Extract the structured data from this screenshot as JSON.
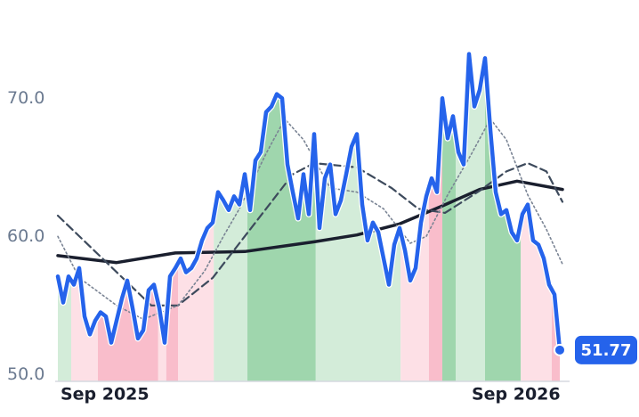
{
  "chart_data": {
    "type": "line",
    "x": [
      0,
      1,
      2,
      3,
      4,
      5,
      6,
      7,
      8,
      9,
      10,
      11,
      12,
      13,
      14,
      15,
      16,
      17,
      18,
      19,
      20,
      21,
      22,
      23,
      24,
      25,
      26,
      27,
      28,
      29,
      30,
      31,
      32,
      33,
      34,
      35,
      36,
      37,
      38,
      39,
      40,
      41,
      42,
      43,
      44,
      45,
      46,
      47,
      48,
      49,
      50,
      51,
      52,
      53,
      54,
      55,
      56,
      57,
      58,
      59,
      60,
      61,
      62,
      63,
      64,
      65,
      66,
      67,
      68,
      69,
      70,
      71,
      72,
      73,
      74,
      75,
      76,
      77,
      78,
      79,
      80,
      81,
      82,
      83,
      84,
      85,
      86,
      87,
      88,
      89,
      90,
      91,
      92,
      93,
      94
    ],
    "xlim": [
      -0.5,
      95.5
    ],
    "xticks": [
      {
        "value": 8.8,
        "label": "Sep 2025"
      },
      {
        "value": 85.8,
        "label": "Sep 2026"
      }
    ],
    "ylim": [
      49.5,
      74.5
    ],
    "yticks": [
      {
        "value": 50,
        "label": "50.0"
      },
      {
        "value": 60,
        "label": "60.0"
      },
      {
        "value": 70,
        "label": "70.0"
      }
    ],
    "series": [
      {
        "color": "#2563eb",
        "style": "solid",
        "values": [
          57.1,
          55.2,
          57.1,
          56.5,
          57.7,
          54.2,
          52.9,
          53.9,
          54.5,
          54.2,
          52.3,
          53.9,
          55.5,
          56.8,
          54.8,
          52.6,
          53.2,
          56.1,
          56.5,
          54.8,
          52.3,
          57.1,
          57.7,
          58.4,
          57.4,
          57.7,
          58.4,
          59.7,
          60.6,
          61.0,
          63.2,
          62.6,
          61.9,
          62.9,
          62.3,
          64.5,
          61.9,
          65.5,
          66.1,
          69.0,
          69.4,
          70.3,
          70.0,
          65.2,
          63.2,
          61.3,
          64.5,
          61.6,
          67.4,
          60.6,
          64.2,
          65.2,
          61.6,
          62.6,
          64.5,
          66.5,
          67.4,
          62.3,
          59.7,
          61.0,
          60.3,
          58.4,
          56.5,
          59.4,
          60.6,
          59.0,
          56.8,
          57.7,
          61.0,
          62.9,
          64.2,
          63.2,
          70.0,
          67.1,
          68.7,
          66.1,
          65.2,
          73.2,
          69.4,
          70.6,
          72.9,
          67.7,
          63.2,
          61.6,
          61.9,
          60.3,
          59.7,
          61.6,
          62.3,
          59.7,
          59.4,
          58.4,
          56.5,
          55.8,
          51.77
        ]
      },
      {
        "color": "#1a1f2e",
        "style": "solid",
        "x": [
          0,
          11,
          22,
          35,
          48,
          56,
          64,
          72,
          79,
          86,
          94.5
        ],
        "values": [
          58.6,
          58.1,
          58.8,
          58.9,
          59.6,
          60.1,
          60.9,
          62.2,
          63.4,
          64.0,
          63.4
        ]
      },
      {
        "color": "#3d4a5c",
        "style": "dashed",
        "x": [
          0,
          17.5,
          22.5,
          29,
          34,
          39,
          44,
          48,
          56,
          62.5,
          67.5,
          72.5,
          79,
          84,
          88,
          91.5,
          94.5
        ],
        "values": [
          61.5,
          55.0,
          55.0,
          57.0,
          59.5,
          62.0,
          64.5,
          65.3,
          65.0,
          63.5,
          62.0,
          61.7,
          63.3,
          64.7,
          65.3,
          64.7,
          62.5
        ]
      },
      {
        "color": "#7a8494",
        "style": "dotted",
        "x": [
          0,
          4,
          11,
          16,
          22.5,
          27.5,
          31,
          34,
          39,
          42.5,
          46,
          51,
          56,
          61,
          66,
          69,
          73,
          77.5,
          81,
          84,
          88,
          91.5,
          94.5
        ],
        "values": [
          60.0,
          57.0,
          55.0,
          54.0,
          55.0,
          57.5,
          60.0,
          62.0,
          66.0,
          68.5,
          67.0,
          63.5,
          63.2,
          62.0,
          59.5,
          60.0,
          63.0,
          66.0,
          68.5,
          67.0,
          63.0,
          60.5,
          58.0
        ]
      }
    ],
    "bands": [
      {
        "start": 0,
        "end": 2.5,
        "color": "#d3ecd9"
      },
      {
        "start": 2.5,
        "end": 7.5,
        "color": "#fde0e6"
      },
      {
        "start": 7.5,
        "end": 18.8,
        "color": "#f9bdcb"
      },
      {
        "start": 18.8,
        "end": 20.3,
        "color": "#fde0e6"
      },
      {
        "start": 20.3,
        "end": 22.5,
        "color": "#f9bdcb"
      },
      {
        "start": 22.5,
        "end": 29.2,
        "color": "#fde0e6"
      },
      {
        "start": 29.2,
        "end": 35.5,
        "color": "#d3ecd9"
      },
      {
        "start": 35.5,
        "end": 48.3,
        "color": "#9fd6ad"
      },
      {
        "start": 48.3,
        "end": 64.2,
        "color": "#d3ecd9"
      },
      {
        "start": 64.2,
        "end": 69.5,
        "color": "#fde0e6"
      },
      {
        "start": 69.5,
        "end": 72,
        "color": "#f9bdcb"
      },
      {
        "start": 72,
        "end": 74.5,
        "color": "#9fd6ad"
      },
      {
        "start": 74.5,
        "end": 80,
        "color": "#d3ecd9"
      },
      {
        "start": 80,
        "end": 86.7,
        "color": "#9fd6ad"
      },
      {
        "start": 86.7,
        "end": 92.5,
        "color": "#fde0e6"
      },
      {
        "start": 92.5,
        "end": 94,
        "color": "#f9bdcb"
      }
    ]
  }
}
